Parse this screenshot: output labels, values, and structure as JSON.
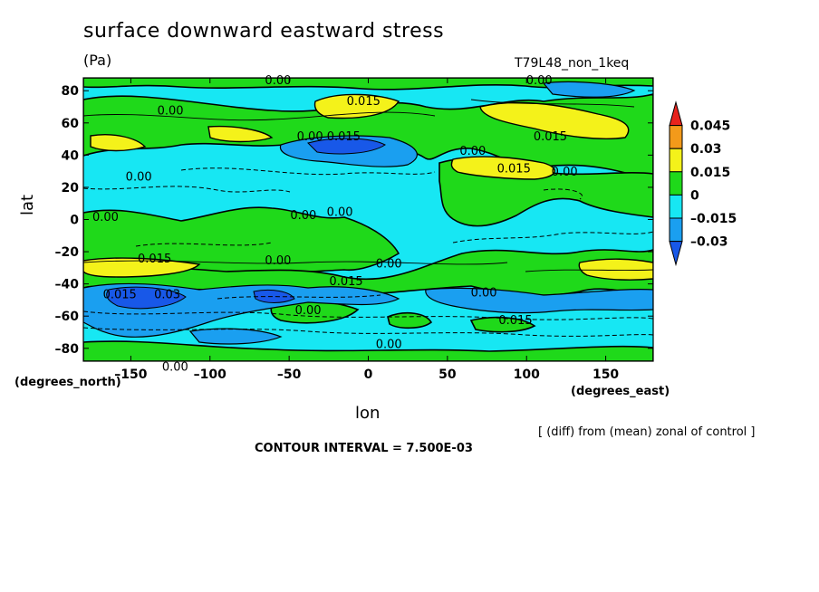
{
  "chart_data": {
    "type": "heatmap",
    "title": "surface downward eastward stress",
    "units": "(Pa)",
    "run_label": "T79L48_non_1keq",
    "xlabel": "lon",
    "xunits": "(degrees_east)",
    "ylabel": "lat",
    "yunits": "(degrees_north)",
    "xlim": [
      -180,
      180
    ],
    "ylim": [
      -88,
      88
    ],
    "x_ticks": [
      -150,
      -100,
      -50,
      0,
      50,
      100,
      150
    ],
    "y_ticks": [
      80,
      60,
      40,
      20,
      0,
      -20,
      -40,
      -60,
      -80
    ],
    "note": "[ (diff) from (mean) zonal of control ]",
    "contour_interval": "CONTOUR INTERVAL = 7.500E-03",
    "colorbar": {
      "labels": [
        "0.045",
        "0.03",
        "0.015",
        "0",
        "–0.015",
        "–0.03"
      ],
      "colors": [
        "#e8231d",
        "#f39a1a",
        "#f4f21a",
        "#1fd91a",
        "#17e7f3",
        "#1a9ff0",
        "#1858e8"
      ]
    },
    "contour_labels": [
      {
        "text": "0.00",
        "lon": -57,
        "lat": 87
      },
      {
        "text": "0.00",
        "lon": 108,
        "lat": 87
      },
      {
        "text": "0.015",
        "lon": -3,
        "lat": 74
      },
      {
        "text": "0.00",
        "lon": -125,
        "lat": 68
      },
      {
        "text": "0.015",
        "lon": 115,
        "lat": 52
      },
      {
        "text": "0.00 0.015",
        "lon": -25,
        "lat": 52
      },
      {
        "text": "0.00",
        "lon": 66,
        "lat": 43
      },
      {
        "text": "0.015",
        "lon": 92,
        "lat": 32
      },
      {
        "text": "0.00",
        "lon": 124,
        "lat": 30
      },
      {
        "text": "0.00",
        "lon": -145,
        "lat": 27
      },
      {
        "text": "0.00",
        "lon": -41,
        "lat": 3
      },
      {
        "text": "0.00",
        "lon": -18,
        "lat": 5
      },
      {
        "text": "0.00",
        "lon": -166,
        "lat": 2
      },
      {
        "text": "0.015",
        "lon": -135,
        "lat": -24
      },
      {
        "text": "0.00",
        "lon": -57,
        "lat": -25
      },
      {
        "text": "0.00",
        "lon": 13,
        "lat": -27
      },
      {
        "text": "0.015",
        "lon": -14,
        "lat": -38
      },
      {
        "text": "0.015",
        "lon": -157,
        "lat": -46
      },
      {
        "text": "0.03",
        "lon": -127,
        "lat": -46
      },
      {
        "text": "0.00",
        "lon": 73,
        "lat": -45
      },
      {
        "text": "0.00",
        "lon": -38,
        "lat": -56
      },
      {
        "text": "0.015",
        "lon": 93,
        "lat": -62
      },
      {
        "text": "0.00",
        "lon": 13,
        "lat": -77
      },
      {
        "text": "0.00",
        "lon": -122,
        "lat": -91
      }
    ]
  }
}
